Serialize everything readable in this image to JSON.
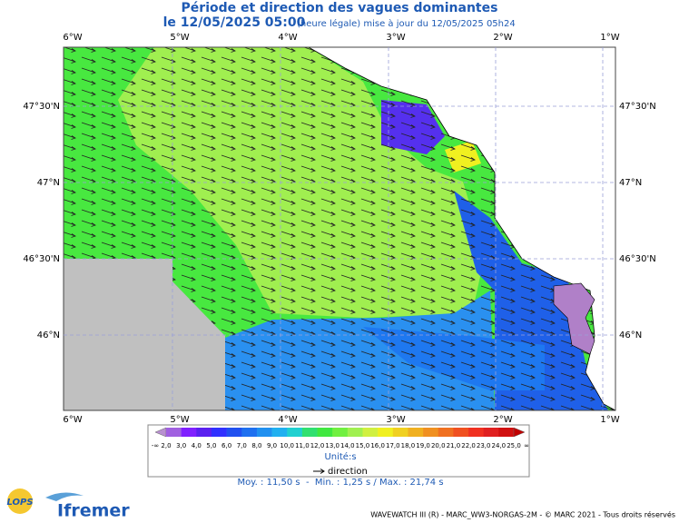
{
  "header": {
    "title": "Période et direction des vagues dominantes",
    "date": "le 12/05/2025 05:00",
    "update": "(heure légale) mise à jour du 12/05/2025 05h24"
  },
  "map": {
    "longitudes": [
      "6°W",
      "5°W",
      "4°W",
      "3°W",
      "2°W",
      "1°W"
    ],
    "latitudes": [
      "47°30'N",
      "47°N",
      "46°30'N",
      "46°N"
    ]
  },
  "colorbar": {
    "low": "-∞",
    "high": "∞",
    "labels": [
      "2,0",
      "3,0",
      "4,0",
      "5,0",
      "6,0",
      "7,0",
      "8,0",
      "9,0",
      "10,0",
      "11,0",
      "12,0",
      "13,0",
      "14,0",
      "15,0",
      "16,0",
      "17,0",
      "18,0",
      "19,0",
      "20,0",
      "21,0",
      "22,0",
      "23,0",
      "24,0",
      "25,0"
    ],
    "colors": [
      "#b890d0",
      "#a060e0",
      "#8020ff",
      "#5a20f0",
      "#3030ff",
      "#2050f0",
      "#1e70f0",
      "#2090f0",
      "#20b0f0",
      "#20d0d0",
      "#30e070",
      "#40e840",
      "#70f040",
      "#a0f050",
      "#d0f040",
      "#f0f020",
      "#f0d020",
      "#f0b020",
      "#f09020",
      "#f07020",
      "#f05020",
      "#f03020",
      "#e02020",
      "#d01010",
      "#c00000"
    ],
    "unit": "Unité:s",
    "direction": "direction"
  },
  "stats": "Moy. : 11,50 s  -  Min. : 1,25 s / Max. : 21,74 s",
  "logos": {
    "lops": "LOPS",
    "ifremer": "Ifremer"
  },
  "footer": "WAVEWATCH III (R) - MARC_WW3-NORGAS-2M - © MARC 2021 - Tous droits réservés"
}
